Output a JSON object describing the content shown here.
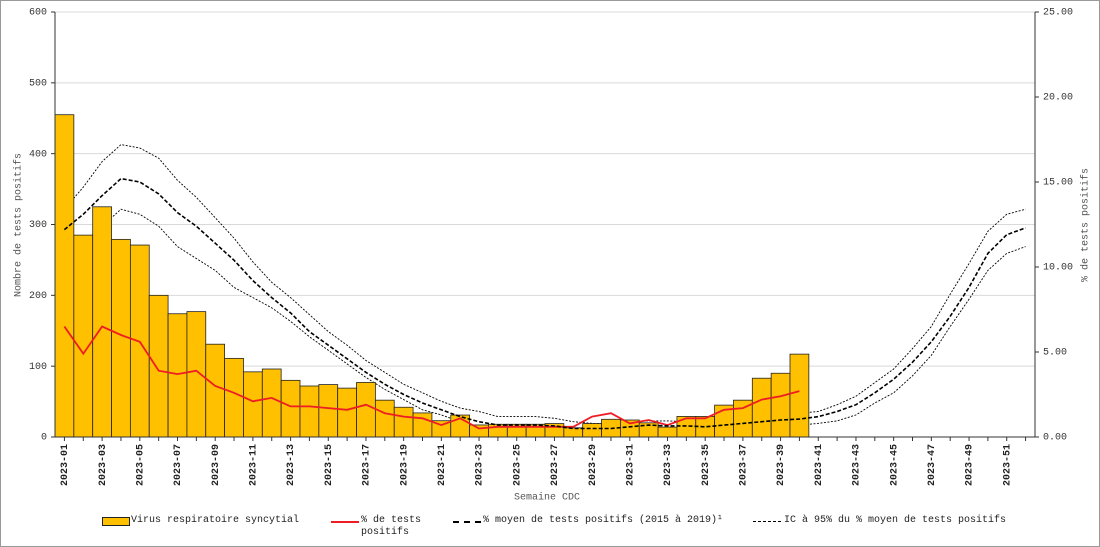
{
  "chart_data": {
    "type": "bar_line",
    "xlabel": "Semaine CDC",
    "ylabel": "Nombre de tests positifs",
    "y2label": "% de tests positifs",
    "categories": [
      "2023-01",
      null,
      "2023-03",
      null,
      "2023-05",
      null,
      "2023-07",
      null,
      "2023-09",
      null,
      "2023-11",
      null,
      "2023-13",
      null,
      "2023-15",
      null,
      "2023-17",
      null,
      "2023-19",
      null,
      "2023-21",
      null,
      "2023-23",
      null,
      "2023-25",
      null,
      "2023-27",
      null,
      "2023-29",
      null,
      "2023-31",
      null,
      "2023-33",
      null,
      "2023-35",
      null,
      "2023-37",
      null,
      "2023-39",
      null,
      "2023-41",
      null,
      "2023-43",
      null,
      "2023-45",
      null,
      "2023-47",
      null,
      "2023-49",
      null,
      "2023-51",
      null
    ],
    "ylim": [
      0,
      600
    ],
    "yticks": [
      0,
      100,
      200,
      300,
      400,
      500,
      600
    ],
    "y2lim": [
      0,
      25
    ],
    "y2ticks": [
      {
        "value": 0,
        "label": "0.00"
      },
      {
        "value": 5,
        "label": "5.00"
      },
      {
        "value": 10,
        "label": "10.00"
      },
      {
        "value": 15,
        "label": "15.00"
      },
      {
        "value": 20,
        "label": "20.00"
      },
      {
        "value": 25,
        "label": "25.00"
      }
    ],
    "grid": true,
    "series": [
      {
        "name": "Virus respiratoire syncytial",
        "kind": "bar",
        "color": "#ffc000",
        "values": [
          455,
          285,
          325,
          279,
          271,
          200,
          174,
          177,
          131,
          111,
          92,
          96,
          80,
          72,
          74,
          69,
          77,
          52,
          42,
          34,
          23,
          31,
          17,
          18,
          18,
          18,
          19,
          13,
          19,
          25,
          24,
          20,
          14,
          29,
          29,
          45,
          52,
          83,
          90,
          117,
          null,
          null,
          null,
          null,
          null,
          null,
          null,
          null,
          null,
          null,
          null,
          null
        ]
      },
      {
        "name": "% de tests positifs",
        "kind": "line",
        "axis": "y2",
        "color": "#ee1c25",
        "values": [
          6.5,
          4.9,
          6.5,
          6.0,
          5.6,
          3.9,
          3.7,
          3.9,
          3.0,
          2.6,
          2.1,
          2.3,
          1.8,
          1.8,
          1.7,
          1.6,
          1.9,
          1.4,
          1.2,
          1.1,
          0.7,
          1.1,
          0.5,
          0.6,
          0.6,
          0.6,
          0.6,
          0.6,
          1.2,
          1.4,
          0.8,
          1.0,
          0.7,
          1.1,
          1.1,
          1.6,
          1.7,
          2.2,
          2.4,
          2.7,
          null,
          null,
          null,
          null,
          null,
          null,
          null,
          null,
          null,
          null,
          null,
          null
        ]
      },
      {
        "name": "% moyen de tests positifs (2015 à 2019)¹",
        "kind": "dashed",
        "axis": "y2",
        "color": "#000000",
        "values": [
          12.2,
          13.1,
          14.2,
          15.2,
          15.0,
          14.3,
          13.2,
          12.4,
          11.4,
          10.4,
          9.2,
          8.2,
          7.3,
          6.2,
          5.4,
          4.6,
          3.8,
          3.1,
          2.5,
          2.0,
          1.6,
          1.2,
          0.9,
          0.7,
          0.7,
          0.7,
          0.65,
          0.5,
          0.5,
          0.5,
          0.6,
          0.7,
          0.65,
          0.65,
          0.6,
          0.7,
          0.8,
          0.9,
          1.0,
          1.05,
          1.2,
          1.5,
          1.9,
          2.6,
          3.4,
          4.4,
          5.6,
          7.1,
          8.8,
          10.8,
          11.9,
          12.3
        ]
      },
      {
        "name": "IC à 95% du % moyen de tests positifs",
        "kind": "band",
        "axis": "y2",
        "color": "#000000",
        "upper": [
          13.4,
          14.7,
          16.2,
          17.2,
          17.0,
          16.4,
          15.1,
          14.1,
          12.9,
          11.7,
          10.3,
          9.1,
          8.2,
          7.2,
          6.2,
          5.4,
          4.5,
          3.8,
          3.1,
          2.6,
          2.1,
          1.7,
          1.5,
          1.2,
          1.2,
          1.2,
          1.1,
          0.9,
          0.8,
          0.8,
          0.9,
          0.95,
          0.95,
          0.9,
          1.0,
          1.2,
          1.3,
          1.35,
          1.4,
          1.4,
          1.5,
          1.9,
          2.4,
          3.2,
          4.0,
          5.2,
          6.5,
          8.4,
          10.2,
          12.1,
          13.1,
          13.4
        ],
        "lower": [
          11.1,
          11.4,
          12.4,
          13.4,
          13.1,
          12.4,
          11.2,
          10.5,
          9.8,
          8.8,
          8.2,
          7.6,
          6.8,
          5.9,
          5.1,
          4.3,
          3.5,
          2.8,
          2.2,
          1.6,
          1.3,
          0.9,
          0.6,
          0.5,
          0.5,
          0.5,
          0.4,
          0.3,
          0.25,
          0.3,
          0.3,
          0.4,
          0.3,
          0.35,
          0.3,
          0.4,
          0.5,
          0.65,
          0.7,
          0.7,
          0.8,
          0.95,
          1.3,
          2.0,
          2.6,
          3.6,
          4.8,
          6.5,
          8.1,
          9.8,
          10.8,
          11.2
        ]
      }
    ]
  }
}
